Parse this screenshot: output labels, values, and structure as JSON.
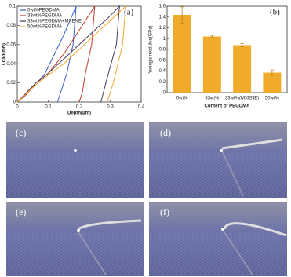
{
  "chart_data": [
    {
      "type": "line",
      "panel_label": "(a)",
      "x_label": "Depth(μm)",
      "y_label": "Load(mN)",
      "xlim": [
        0,
        0.4
      ],
      "xticks": [
        0,
        0.1,
        0.2,
        0.3,
        0.4
      ],
      "ylim": [
        0,
        0.1
      ],
      "yticks": [
        0,
        0.02,
        0.04,
        0.06,
        0.08,
        0.1
      ],
      "legend": "top-left",
      "series": [
        {
          "name": "0wt%PEGDMA",
          "color": "#3a5fcd",
          "x": [
            0,
            0.03,
            0.06,
            0.07,
            0.09,
            0.12,
            0.15,
            0.17,
            0.19,
            0.18,
            0.16,
            0.14,
            0.13
          ],
          "values": [
            0,
            0.008,
            0.02,
            0.022,
            0.03,
            0.05,
            0.07,
            0.085,
            0.1,
            0.06,
            0.03,
            0.01,
            0
          ]
        },
        {
          "name": "33wt%PEGDMA",
          "color": "#c0392b",
          "x": [
            0,
            0.03,
            0.06,
            0.07,
            0.1,
            0.15,
            0.2,
            0.25,
            0.24,
            0.22,
            0.21,
            0.2
          ],
          "values": [
            0,
            0.008,
            0.02,
            0.022,
            0.03,
            0.05,
            0.075,
            0.1,
            0.06,
            0.03,
            0.01,
            0
          ]
        },
        {
          "name": "33wt%PEGDMA+MXENE",
          "color": "#4a3a5a",
          "x": [
            0,
            0.06,
            0.1,
            0.15,
            0.2,
            0.25,
            0.3,
            0.33,
            0.32,
            0.29,
            0.27
          ],
          "values": [
            0,
            0.02,
            0.03,
            0.045,
            0.06,
            0.075,
            0.09,
            0.1,
            0.06,
            0.025,
            0
          ]
        },
        {
          "name": "50wt%PEGDMA",
          "color": "#f0a830",
          "x": [
            0,
            0.06,
            0.1,
            0.15,
            0.2,
            0.25,
            0.3,
            0.35,
            0.34,
            0.31,
            0.29
          ],
          "values": [
            0,
            0.018,
            0.028,
            0.04,
            0.055,
            0.07,
            0.085,
            0.1,
            0.06,
            0.02,
            0
          ]
        }
      ]
    },
    {
      "type": "bar",
      "panel_label": "(b)",
      "x_label": "Content of PEGDMA",
      "y_label": "Young's modulus(GPa)",
      "categories": [
        "0wt%",
        "33wt%",
        "33wt%(MXENE)",
        "50wt%"
      ],
      "values": [
        1.44,
        1.04,
        0.88,
        0.37
      ],
      "errors": [
        0.15,
        0.02,
        0.03,
        0.05
      ],
      "color": "#f0ab2a",
      "ylim": [
        0,
        1.6
      ],
      "yticks": [
        0,
        0.2,
        0.4,
        0.6,
        0.8,
        1,
        1.2,
        1.4,
        1.6
      ]
    }
  ],
  "panels": [
    {
      "label": "(c)"
    },
    {
      "label": "(d)"
    },
    {
      "label": "(e)"
    },
    {
      "label": "(f)"
    }
  ]
}
